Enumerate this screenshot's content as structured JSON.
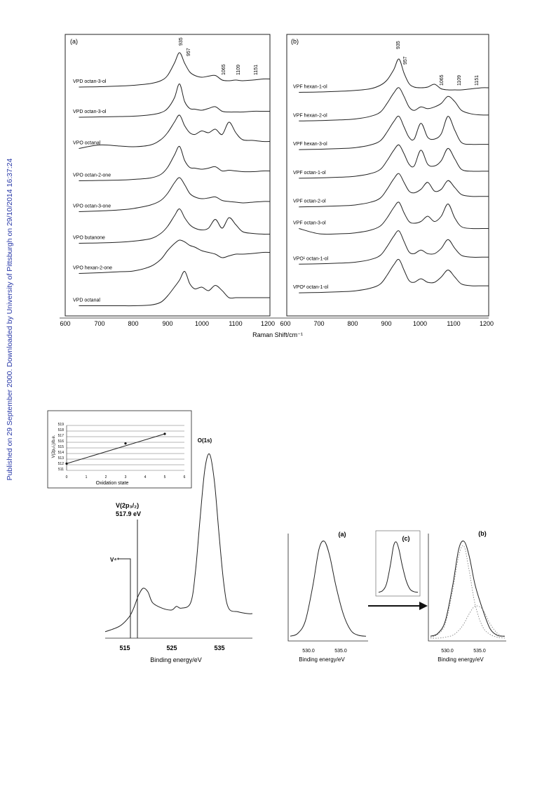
{
  "watermark": {
    "text": "Published on 29 September 2000. Downloaded by University of Pittsburgh on 29/10/2014 16:37:24",
    "color": "#2a3aa8"
  },
  "raman_figure": {
    "panels": [
      {
        "label": "(a)",
        "peak_labels": [
          "935",
          "957",
          "1065",
          "1109",
          "1151"
        ],
        "spectra": [
          "VPD octan-3-ol",
          "VPD octan-3-ol",
          "VPO octanal",
          "VPO octan-2-one",
          "VPO octan-3-one",
          "VPO butanone",
          "VPO hexan-2-one",
          "VPD octanal"
        ]
      },
      {
        "label": "(b)",
        "peak_labels": [
          "935",
          "957",
          "1065",
          "1109",
          "1151"
        ],
        "spectra": [
          "VPF hexan-1-ol",
          "VPF hexan-2-ol",
          "VPF hexan-3-ol",
          "VPF octan-1-ol",
          "VPF octan-2-ol",
          "VPF octan-3-ol",
          "VPO¹ octan-1-ol",
          "VPO² octan-1-ol"
        ]
      }
    ],
    "x_ticks_a": [
      "600",
      "700",
      "800",
      "900",
      "1000",
      "1100",
      "1200"
    ],
    "x_ticks_b": [
      "600",
      "700",
      "800",
      "900",
      "1000",
      "1100",
      "1200"
    ],
    "xlabel": "Raman Shift/cm⁻¹"
  },
  "xps_figure": {
    "inset": {
      "y_ticks": [
        "519",
        "518",
        "517",
        "516",
        "515",
        "514",
        "513",
        "512",
        "511"
      ],
      "x_ticks": [
        "0",
        "1",
        "2",
        "3",
        "4",
        "5",
        "6"
      ],
      "xlabel": "Oxidation state",
      "ylabel": "V(2p₃/₂)/b.e."
    },
    "main": {
      "o1s_label": "O(1s)",
      "v2p_label": "V(2p₃/₂)",
      "v2p_value": "517.9 eV",
      "v4_label": "V⁴⁺",
      "x_ticks": [
        "515",
        "525",
        "535"
      ],
      "xlabel": "Binding energy/eV"
    },
    "panel_a": {
      "label": "(a)",
      "x_ticks": [
        "530.0",
        "535.0"
      ],
      "xlabel": "Binding energy/eV"
    },
    "panel_c": {
      "label": "(c)"
    },
    "panel_b": {
      "label": "(b)",
      "x_ticks": [
        "530.0",
        "535.0"
      ],
      "xlabel": "Binding energy/eV"
    }
  },
  "chart_data": [
    {
      "type": "line",
      "title": "",
      "xlabel": "Raman Shift/cm⁻¹",
      "ylabel": "",
      "xlim": [
        600,
        1200
      ],
      "grid": false,
      "note": "panel (a): stacked, vertically offset spectra (intensity in arbitrary units)",
      "x": [
        640,
        700,
        760,
        800,
        850,
        880,
        900,
        920,
        935,
        950,
        965,
        980,
        1000,
        1020,
        1040,
        1060,
        1080,
        1100,
        1120,
        1150,
        1180,
        1200
      ],
      "series": [
        {
          "name": "VPD octan-3-ol",
          "values": [
            0.02,
            0.03,
            0.05,
            0.07,
            0.12,
            0.2,
            0.35,
            0.7,
            1.0,
            0.7,
            0.45,
            0.35,
            0.3,
            0.33,
            0.35,
            0.22,
            0.2,
            0.22,
            0.2,
            0.22,
            0.25,
            0.25
          ]
        },
        {
          "name": "VPD octan-3-ol",
          "values": [
            0.05,
            0.06,
            0.07,
            0.08,
            0.12,
            0.18,
            0.3,
            0.6,
            1.0,
            0.5,
            0.3,
            0.28,
            0.25,
            0.3,
            0.35,
            0.22,
            0.2,
            0.2,
            0.2,
            0.22,
            0.22,
            0.22
          ]
        },
        {
          "name": "VPO octanal",
          "values": [
            0.05,
            0.15,
            0.12,
            0.1,
            0.15,
            0.3,
            0.5,
            0.8,
            1.0,
            0.7,
            0.5,
            0.45,
            0.55,
            0.5,
            0.6,
            0.45,
            0.8,
            0.5,
            0.3,
            0.28,
            0.25,
            0.25
          ]
        },
        {
          "name": "VPO octan-2-one",
          "values": [
            0.02,
            0.03,
            0.04,
            0.06,
            0.1,
            0.2,
            0.4,
            0.75,
            1.0,
            0.6,
            0.4,
            0.38,
            0.35,
            0.38,
            0.42,
            0.3,
            0.32,
            0.3,
            0.28,
            0.28,
            0.3,
            0.3
          ]
        },
        {
          "name": "VPO octan-3-one",
          "values": [
            0.03,
            0.05,
            0.08,
            0.12,
            0.22,
            0.35,
            0.55,
            0.85,
            1.0,
            0.8,
            0.55,
            0.45,
            0.4,
            0.42,
            0.45,
            0.35,
            0.32,
            0.3,
            0.28,
            0.3,
            0.32,
            0.32
          ]
        },
        {
          "name": "VPO butanone",
          "values": [
            0.02,
            0.03,
            0.05,
            0.08,
            0.15,
            0.3,
            0.5,
            0.8,
            1.0,
            0.75,
            0.55,
            0.45,
            0.4,
            0.45,
            0.7,
            0.45,
            0.75,
            0.55,
            0.35,
            0.3,
            0.28,
            0.28
          ]
        },
        {
          "name": "VPO hexan-2-one",
          "values": [
            0.05,
            0.07,
            0.1,
            0.12,
            0.25,
            0.45,
            0.7,
            0.9,
            1.0,
            0.95,
            0.85,
            0.8,
            0.7,
            0.65,
            0.6,
            0.5,
            0.55,
            0.6,
            0.6,
            0.62,
            0.65,
            0.65
          ]
        },
        {
          "name": "VPD octanal",
          "values": [
            0.02,
            0.02,
            0.02,
            0.02,
            0.04,
            0.12,
            0.3,
            0.55,
            0.75,
            1.0,
            0.65,
            0.5,
            0.55,
            0.45,
            0.6,
            0.45,
            0.25,
            0.25,
            0.25,
            0.25,
            0.25,
            0.25
          ]
        }
      ]
    },
    {
      "type": "line",
      "title": "",
      "xlabel": "",
      "ylabel": "",
      "xlim": [
        600,
        1200
      ],
      "grid": false,
      "note": "panel (b): stacked, vertically offset spectra (intensity in arbitrary units)",
      "x": [
        640,
        700,
        760,
        800,
        850,
        880,
        900,
        920,
        935,
        950,
        965,
        980,
        1000,
        1020,
        1040,
        1060,
        1080,
        1100,
        1120,
        1150,
        1180,
        1200
      ],
      "series": [
        {
          "name": "VPF hexan-1-ol",
          "values": [
            0.05,
            0.06,
            0.08,
            0.1,
            0.15,
            0.25,
            0.4,
            0.7,
            1.0,
            0.6,
            0.3,
            0.2,
            0.18,
            0.2,
            0.28,
            0.15,
            0.12,
            0.12,
            0.12,
            0.15,
            0.18,
            0.18
          ]
        },
        {
          "name": "VPF hexan-2-ol",
          "values": [
            0.05,
            0.06,
            0.08,
            0.1,
            0.18,
            0.3,
            0.55,
            0.85,
            1.0,
            0.75,
            0.45,
            0.35,
            0.45,
            0.4,
            0.45,
            0.55,
            0.75,
            0.6,
            0.35,
            0.25,
            0.22,
            0.22
          ]
        },
        {
          "name": "VPF hexan-3-ol",
          "values": [
            0.05,
            0.06,
            0.08,
            0.1,
            0.18,
            0.3,
            0.55,
            0.85,
            1.0,
            0.7,
            0.4,
            0.35,
            0.8,
            0.4,
            0.35,
            0.5,
            1.0,
            0.6,
            0.25,
            0.2,
            0.2,
            0.2
          ]
        },
        {
          "name": "VPF octan-1-ol",
          "values": [
            0.05,
            0.06,
            0.08,
            0.1,
            0.18,
            0.3,
            0.55,
            0.85,
            1.0,
            0.75,
            0.45,
            0.4,
            0.85,
            0.45,
            0.4,
            0.55,
            0.9,
            0.6,
            0.3,
            0.25,
            0.25,
            0.25
          ]
        },
        {
          "name": "VPF octan-2-ol",
          "values": [
            0.05,
            0.06,
            0.08,
            0.1,
            0.18,
            0.3,
            0.55,
            0.85,
            1.0,
            0.75,
            0.5,
            0.45,
            0.55,
            0.75,
            0.5,
            0.55,
            0.8,
            0.6,
            0.4,
            0.35,
            0.35,
            0.35
          ]
        },
        {
          "name": "VPF octan-3-ol",
          "values": [
            0.25,
            0.1,
            0.1,
            0.12,
            0.2,
            0.32,
            0.55,
            0.85,
            1.0,
            0.7,
            0.45,
            0.4,
            0.45,
            0.6,
            0.45,
            0.6,
            0.95,
            0.55,
            0.3,
            0.25,
            0.25,
            0.25
          ]
        },
        {
          "name": "VPO¹ octan-1-ol",
          "values": [
            0.05,
            0.06,
            0.08,
            0.1,
            0.18,
            0.3,
            0.55,
            0.85,
            1.0,
            0.7,
            0.4,
            0.35,
            0.45,
            0.35,
            0.35,
            0.5,
            0.75,
            0.5,
            0.3,
            0.25,
            0.25,
            0.25
          ]
        },
        {
          "name": "VPO² octan-1-ol",
          "values": [
            0.05,
            0.06,
            0.08,
            0.1,
            0.18,
            0.3,
            0.55,
            0.85,
            1.0,
            0.7,
            0.4,
            0.35,
            0.45,
            0.35,
            0.35,
            0.5,
            0.7,
            0.5,
            0.3,
            0.25,
            0.25,
            0.25
          ]
        }
      ]
    },
    {
      "type": "scatter",
      "title": "",
      "xlabel": "Oxidation state",
      "ylabel": "V(2p₃/₂)/b.e.",
      "xlim": [
        0,
        6
      ],
      "ylim": [
        511,
        519
      ],
      "grid": true,
      "x": [
        0,
        3,
        5
      ],
      "values": [
        512.2,
        515.8,
        517.5
      ]
    },
    {
      "type": "line",
      "title": "",
      "xlabel": "Binding energy/eV",
      "ylabel": "",
      "xlim": [
        510,
        541
      ],
      "grid": false,
      "x": [
        510,
        513,
        515,
        516,
        517,
        518,
        519,
        520,
        522,
        524,
        525,
        526,
        528,
        529,
        530,
        531,
        532,
        533,
        534,
        535,
        536,
        538,
        540,
        541
      ],
      "values": [
        0.02,
        0.05,
        0.1,
        0.15,
        0.22,
        0.26,
        0.24,
        0.18,
        0.15,
        0.14,
        0.16,
        0.15,
        0.18,
        0.35,
        0.65,
        0.92,
        1.0,
        0.85,
        0.55,
        0.28,
        0.15,
        0.13,
        0.12,
        0.12
      ]
    },
    {
      "type": "line",
      "title": "",
      "xlabel": "Binding energy/eV",
      "ylabel": "",
      "xlim": [
        528,
        538
      ],
      "grid": false,
      "x": [
        528,
        529,
        530,
        531,
        531.8,
        532.5,
        533.2,
        534,
        535,
        536,
        537,
        538
      ],
      "values": [
        0.02,
        0.05,
        0.18,
        0.55,
        0.92,
        1.0,
        0.85,
        0.55,
        0.25,
        0.08,
        0.03,
        0.02
      ]
    },
    {
      "type": "line",
      "title": "",
      "xlabel": "Binding energy/eV",
      "ylabel": "",
      "xlim": [
        528,
        538
      ],
      "grid": false,
      "x": [
        528,
        529,
        530,
        531,
        531.8,
        532.5,
        533.2,
        534,
        535,
        536,
        537,
        538
      ],
      "series": [
        {
          "values": [
            0.02,
            0.05,
            0.18,
            0.55,
            0.92,
            1.0,
            0.85,
            0.55,
            0.3,
            0.1,
            0.03,
            0.02
          ]
        },
        {
          "values": [
            0.01,
            0.04,
            0.15,
            0.5,
            0.85,
            0.95,
            0.7,
            0.35,
            0.12,
            0.04,
            0.01,
            0.0
          ]
        },
        {
          "values": [
            0.0,
            0.0,
            0.01,
            0.03,
            0.08,
            0.15,
            0.25,
            0.33,
            0.3,
            0.15,
            0.05,
            0.01
          ]
        }
      ]
    }
  ]
}
